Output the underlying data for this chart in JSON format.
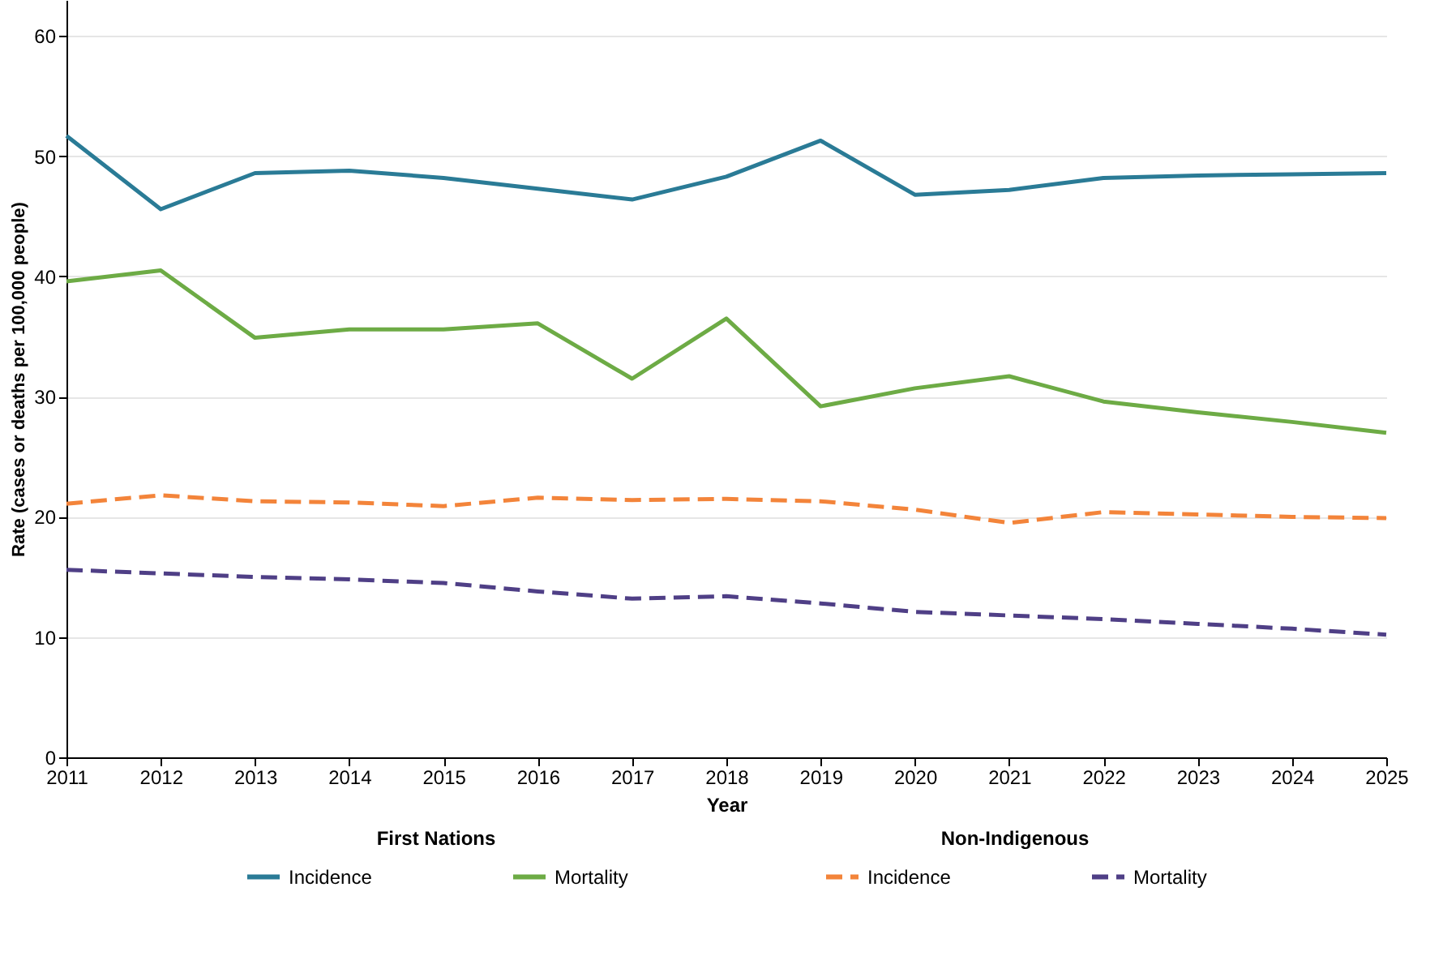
{
  "chart_data": {
    "type": "line",
    "xlabel": "Year",
    "ylabel": "Rate (cases or deaths per 100,000 people)",
    "legend_title": [
      "First Nations",
      "Non-Indigenous"
    ],
    "legend": "bottom",
    "grid": "y",
    "x": [
      2011,
      2012,
      2013,
      2014,
      2015,
      2016,
      2017,
      2018,
      2019,
      2020,
      2021,
      2022,
      2023,
      2024,
      2025
    ],
    "xlim": [
      2011,
      2025
    ],
    "xticks": [
      2011,
      2012,
      2013,
      2014,
      2015,
      2016,
      2017,
      2018,
      2019,
      2020,
      2021,
      2022,
      2023,
      2024,
      2025
    ],
    "ylim": [
      0,
      63
    ],
    "yticks": [
      0,
      10,
      20,
      30,
      40,
      50,
      60
    ],
    "series": [
      {
        "name": "Incidence",
        "color": "#2a7b96",
        "line_style": "solid",
        "values": [
          51.7,
          45.6,
          48.6,
          48.8,
          48.2,
          47.3,
          46.4,
          48.3,
          51.3,
          46.8,
          47.2,
          48.2,
          48.4,
          48.5,
          48.6
        ]
      },
      {
        "name": "Mortality",
        "color": "#6dab45",
        "line_style": "solid",
        "values": [
          39.6,
          40.5,
          34.9,
          35.6,
          35.6,
          36.1,
          31.5,
          36.5,
          29.2,
          30.7,
          31.7,
          29.6,
          28.7,
          27.9,
          27.0
        ]
      },
      {
        "name": "Incidence",
        "color": "#f3843a",
        "line_style": "dashed",
        "values": [
          21.1,
          21.8,
          21.3,
          21.2,
          20.9,
          21.6,
          21.4,
          21.5,
          21.3,
          20.6,
          19.5,
          20.4,
          20.2,
          20.0,
          19.9
        ]
      },
      {
        "name": "Mortality",
        "color": "#4f3f86",
        "line_style": "dashed",
        "values": [
          15.6,
          15.3,
          15.0,
          14.8,
          14.5,
          13.8,
          13.2,
          13.4,
          12.8,
          12.1,
          11.8,
          11.5,
          11.1,
          10.7,
          10.2
        ]
      }
    ]
  }
}
